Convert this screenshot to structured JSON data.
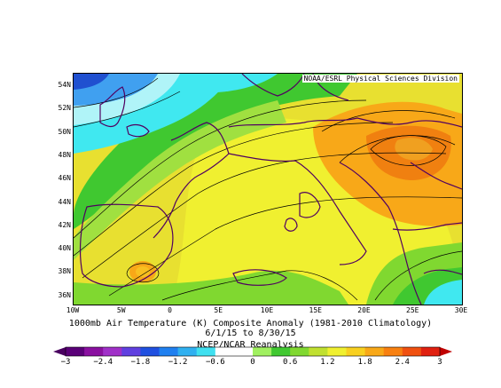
{
  "map": {
    "credit": "NOAA/ESRL Physical Sciences Division",
    "lat_labels": [
      "54N",
      "52N",
      "50N",
      "48N",
      "46N",
      "44N",
      "42N",
      "40N",
      "38N",
      "36N"
    ],
    "lon_labels": [
      "10W",
      "5W",
      "0",
      "5E",
      "10E",
      "15E",
      "20E",
      "25E",
      "30E"
    ],
    "region": {
      "lon_range": [
        -10,
        30
      ],
      "lat_range": [
        35,
        55
      ]
    }
  },
  "caption": {
    "line1": "1000mb Air Temperature (K) Composite Anomaly (1981-2010 Climatology)",
    "line2": "6/1/15  to  8/30/15",
    "line3": "NCEP/NCAR Reanalysis"
  },
  "colorbar": {
    "labels": [
      "−3",
      "−2.4",
      "−1.8",
      "−1.2",
      "−0.6",
      "0",
      "0.6",
      "1.2",
      "1.8",
      "2.4",
      "3"
    ],
    "colors": [
      "#5a0078",
      "#8a10a0",
      "#a030c8",
      "#6040e0",
      "#2050e0",
      "#2080f0",
      "#30b0f0",
      "#40e0f0",
      "#ffffff",
      "#ffffff",
      "#a0f060",
      "#40c830",
      "#80d830",
      "#c0e030",
      "#f0f030",
      "#f8d020",
      "#f8a818",
      "#f88010",
      "#f05010",
      "#e02010"
    ]
  },
  "colors": {
    "strong_warm": "#f88a10",
    "warm": "#f8a818",
    "yellow": "#f0f030",
    "yellow_green": "#c0e030",
    "green": "#40c830",
    "light_green": "#80e060",
    "cyan": "#40e8f0",
    "light_cyan": "#b0f4f8",
    "blue": "#2060e0",
    "land_border": "#500060"
  }
}
